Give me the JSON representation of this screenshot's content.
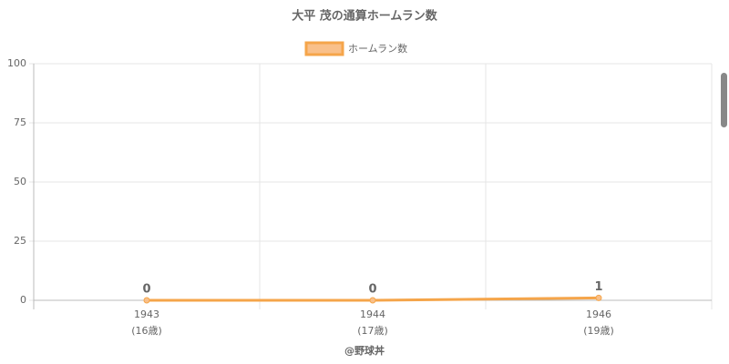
{
  "chart_data": {
    "type": "line",
    "title": "大平 茂の通算ホームラン数",
    "categories": [
      "1943",
      "1944",
      "1946"
    ],
    "category_sublabels": [
      "(16歳)",
      "(17歳)",
      "(19歳)"
    ],
    "series": [
      {
        "name": "ホームラン数",
        "color": "#f5a54a",
        "values": [
          0,
          0,
          1
        ]
      }
    ],
    "ylim": [
      0,
      100
    ],
    "yticks": [
      0,
      25,
      50,
      75,
      100
    ],
    "grid": true,
    "legend": "top",
    "credit": "@野球丼"
  }
}
